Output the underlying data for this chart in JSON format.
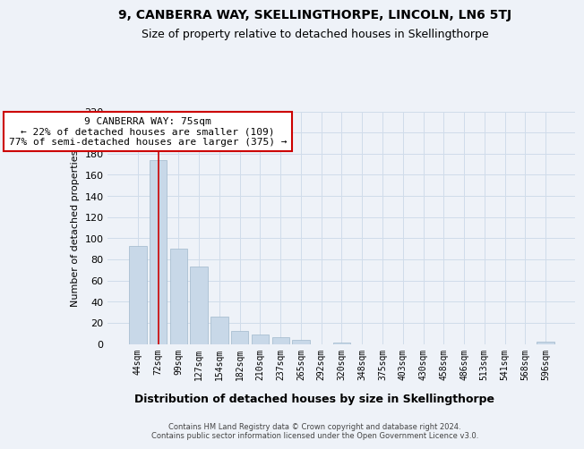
{
  "title": "9, CANBERRA WAY, SKELLINGTHORPE, LINCOLN, LN6 5TJ",
  "subtitle": "Size of property relative to detached houses in Skellingthorpe",
  "xlabel": "Distribution of detached houses by size in Skellingthorpe",
  "ylabel": "Number of detached properties",
  "bar_color": "#c8d8e8",
  "bar_edge_color": "#a0b8cc",
  "grid_color": "#d0dcea",
  "background_color": "#eef2f8",
  "categories": [
    "44sqm",
    "72sqm",
    "99sqm",
    "127sqm",
    "154sqm",
    "182sqm",
    "210sqm",
    "237sqm",
    "265sqm",
    "292sqm",
    "320sqm",
    "348sqm",
    "375sqm",
    "403sqm",
    "430sqm",
    "458sqm",
    "486sqm",
    "513sqm",
    "541sqm",
    "568sqm",
    "596sqm"
  ],
  "values": [
    93,
    174,
    90,
    73,
    26,
    12,
    9,
    6,
    4,
    0,
    1,
    0,
    0,
    0,
    0,
    0,
    0,
    0,
    0,
    0,
    2
  ],
  "ylim": [
    0,
    220
  ],
  "yticks": [
    0,
    20,
    40,
    60,
    80,
    100,
    120,
    140,
    160,
    180,
    200,
    220
  ],
  "vline_x": 1,
  "vline_color": "#cc0000",
  "annotation_title": "9 CANBERRA WAY: 75sqm",
  "annotation_line1": "← 22% of detached houses are smaller (109)",
  "annotation_line2": "77% of semi-detached houses are larger (375) →",
  "annotation_box_color": "#ffffff",
  "annotation_box_edge": "#cc0000",
  "footer1": "Contains HM Land Registry data © Crown copyright and database right 2024.",
  "footer2": "Contains public sector information licensed under the Open Government Licence v3.0."
}
